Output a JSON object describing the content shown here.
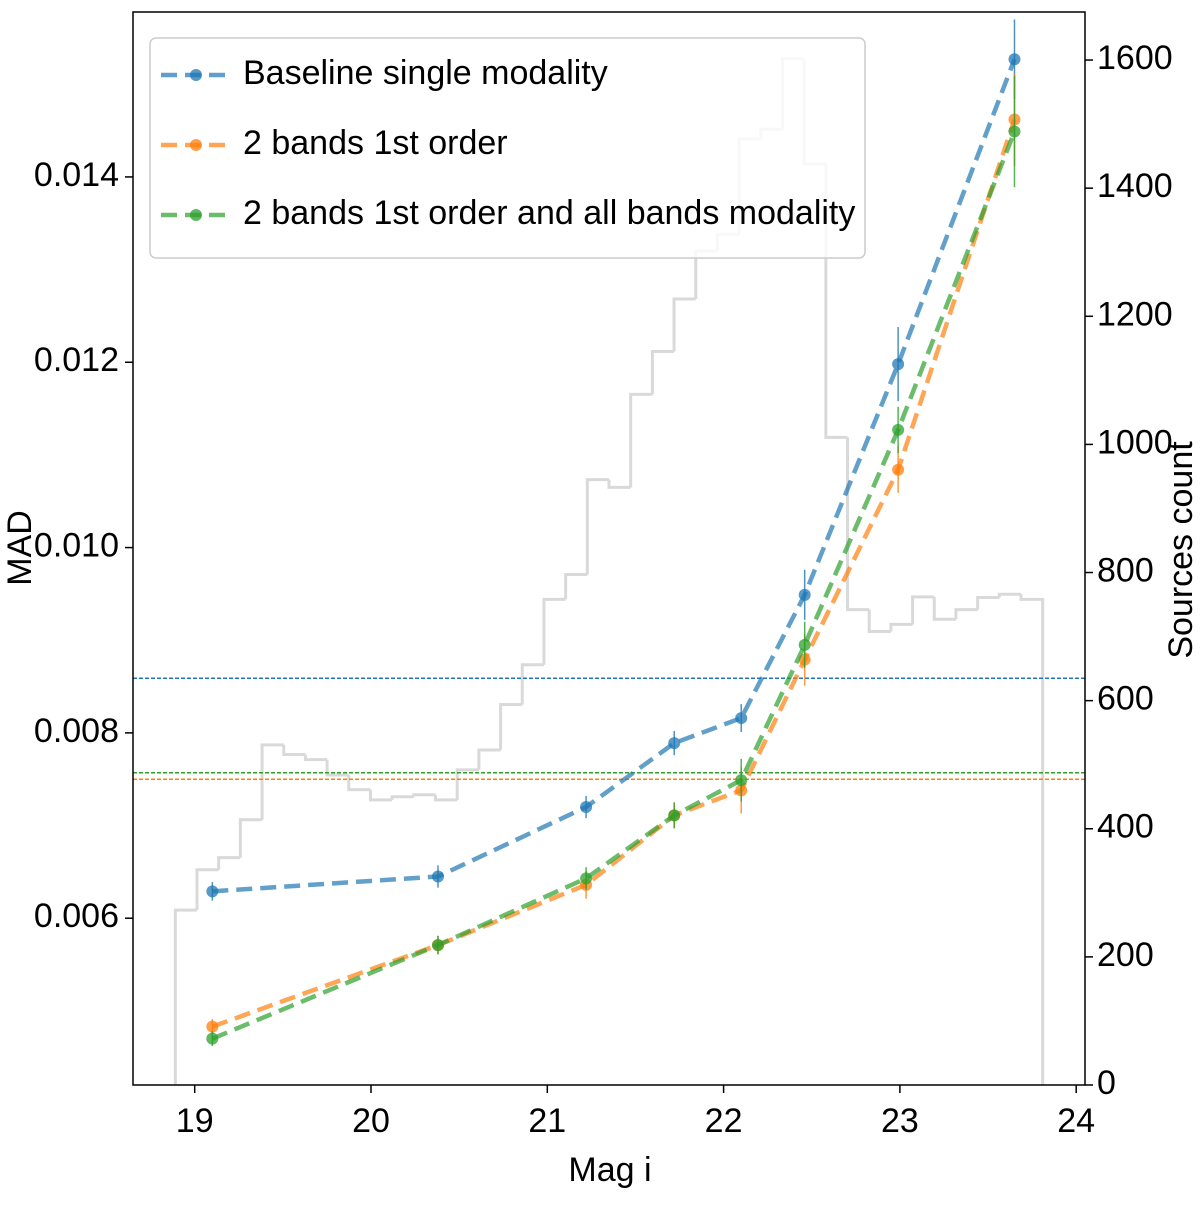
{
  "chart_data": {
    "type": "line",
    "xlabel": "Mag i",
    "ylabel": "MAD",
    "y2label": "Sources count",
    "xlim": [
      18.65,
      24.05
    ],
    "xticks": [
      19,
      20,
      21,
      22,
      23,
      24
    ],
    "ylim": [
      0.0042,
      0.01578
    ],
    "yticks": [
      0.006,
      0.008,
      {
        "value": 0.01,
        "label": "0.010"
      },
      0.012,
      0.014
    ],
    "y2lim": [
      0,
      1675
    ],
    "y2ticks": [
      0,
      200,
      400,
      600,
      800,
      1000,
      1200,
      1400,
      1600
    ],
    "legend": "upper left",
    "x": [
      19.1,
      20.38,
      21.22,
      21.72,
      22.1,
      22.46,
      22.99,
      23.65
    ],
    "series": [
      {
        "name": "Baseline single modality",
        "color": "#1f77b4",
        "values": [
          0.00629,
          0.00645,
          0.0072,
          0.00789,
          0.00816,
          0.00949,
          0.01198,
          0.01527
        ],
        "errors": [
          0.0001,
          0.00012,
          0.00012,
          0.00013,
          0.00015,
          0.00027,
          0.0004,
          0.00043
        ]
      },
      {
        "name": "2 bands 1st order",
        "color": "#ff7f0e",
        "values": [
          0.00483,
          0.00571,
          0.00636,
          0.00711,
          0.00738,
          0.00879,
          0.01084,
          0.01462
        ],
        "errors": [
          8e-05,
          0.0001,
          0.00015,
          0.00014,
          0.00025,
          0.00028,
          0.00025,
          0.0005
        ]
      },
      {
        "name": "2 bands 1st order and all bands modality",
        "color": "#2ca02c",
        "values": [
          0.0047,
          0.00571,
          0.00643,
          0.00711,
          0.00749,
          0.00895,
          0.01127,
          0.01449
        ],
        "errors": [
          8e-05,
          0.0001,
          0.00012,
          0.00014,
          0.00023,
          0.00025,
          0.00025,
          0.0006
        ]
      }
    ],
    "hlines": [
      {
        "value": 0.00859,
        "color": "#1f77b4"
      },
      {
        "value": 0.00757,
        "color": "#2ca02c"
      },
      {
        "value": 0.0075,
        "color": "#ff7f0e"
      }
    ],
    "histogram": {
      "axis": "y2",
      "color": "#d9d9d9",
      "bins": [
        18.89,
        19.013,
        19.136,
        19.259,
        19.382,
        19.505,
        19.628,
        19.751,
        19.874,
        19.997,
        20.12,
        20.243,
        20.366,
        20.489,
        20.612,
        20.735,
        20.858,
        20.981,
        21.104,
        21.227,
        21.35,
        21.473,
        21.596,
        21.719,
        21.842,
        21.965,
        22.088,
        22.211,
        22.334,
        22.457,
        22.58,
        22.703,
        22.826,
        22.949,
        23.072,
        23.195,
        23.318,
        23.441,
        23.564,
        23.687,
        23.81
      ],
      "counts": [
        273,
        336,
        355,
        414,
        531,
        516,
        508,
        484,
        461,
        445,
        450,
        453,
        445,
        492,
        523,
        594,
        656,
        758,
        797,
        945,
        933,
        1078,
        1145,
        1227,
        1302,
        1328,
        1477,
        1492,
        1602,
        1438,
        1011,
        742,
        708,
        719,
        762,
        727,
        742,
        761,
        766,
        758
      ]
    }
  }
}
